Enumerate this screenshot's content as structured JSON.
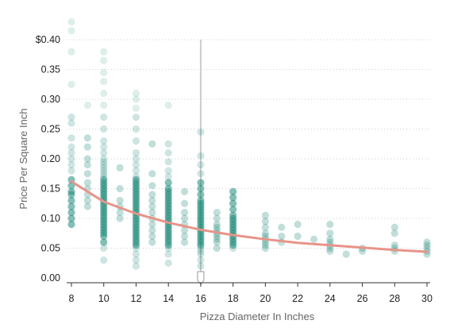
{
  "chart_data": {
    "type": "scatter",
    "xlabel": "Pizza Diameter In Inches",
    "ylabel": "Price Per Square Inch",
    "xlim": [
      8,
      30
    ],
    "ylim": [
      0,
      0.4
    ],
    "x_ticks": [
      "8",
      "10",
      "12",
      "14",
      "16",
      "18",
      "20",
      "22",
      "24",
      "26",
      "28",
      "30"
    ],
    "y_ticks": [
      "0.00",
      "0.05",
      "0.10",
      "0.15",
      "0.20",
      "0.25",
      "0.30",
      "0.35",
      "$0.40"
    ],
    "grid": "horizontal dotted",
    "colors": {
      "points": "#1f8a7a",
      "trend": "#e8948a",
      "marker": "#cccccc"
    },
    "columns": [
      {
        "x": 8,
        "y": [
          0.43,
          0.415,
          0.38,
          0.325,
          0.27,
          0.26,
          0.235,
          0.22,
          0.21,
          0.2,
          0.19,
          0.18,
          0.165,
          0.155,
          0.145,
          0.14,
          0.13,
          0.12,
          0.11,
          0.1,
          0.09
        ]
      },
      {
        "x": 9,
        "y": [
          0.29,
          0.235,
          0.22,
          0.2,
          0.19,
          0.175,
          0.16,
          0.15,
          0.14,
          0.13,
          0.12
        ]
      },
      {
        "x": 10,
        "y": [
          0.38,
          0.365,
          0.345,
          0.33,
          0.31,
          0.29,
          0.27,
          0.25,
          0.23,
          0.22,
          0.21,
          0.2,
          0.195,
          0.19,
          0.185,
          0.18,
          0.175,
          0.17,
          0.165,
          0.16,
          0.155,
          0.15,
          0.145,
          0.14,
          0.135,
          0.13,
          0.125,
          0.12,
          0.115,
          0.11,
          0.105,
          0.1,
          0.095,
          0.09,
          0.085,
          0.08,
          0.075,
          0.07,
          0.06,
          0.05,
          0.03
        ]
      },
      {
        "x": 11,
        "y": [
          0.185,
          0.15,
          0.13,
          0.12,
          0.11,
          0.1
        ]
      },
      {
        "x": 12,
        "y": [
          0.31,
          0.3,
          0.285,
          0.27,
          0.25,
          0.23,
          0.21,
          0.2,
          0.19,
          0.18,
          0.17,
          0.165,
          0.16,
          0.155,
          0.15,
          0.145,
          0.14,
          0.135,
          0.13,
          0.125,
          0.12,
          0.115,
          0.11,
          0.105,
          0.1,
          0.095,
          0.09,
          0.085,
          0.08,
          0.075,
          0.07,
          0.065,
          0.06,
          0.055,
          0.05,
          0.04,
          0.03,
          0.02
        ]
      },
      {
        "x": 13,
        "y": [
          0.225,
          0.175,
          0.155,
          0.14,
          0.13,
          0.12,
          0.11,
          0.1,
          0.09,
          0.08,
          0.07,
          0.06
        ]
      },
      {
        "x": 14,
        "y": [
          0.29,
          0.225,
          0.21,
          0.195,
          0.18,
          0.17,
          0.16,
          0.15,
          0.145,
          0.14,
          0.135,
          0.13,
          0.125,
          0.12,
          0.115,
          0.11,
          0.105,
          0.1,
          0.095,
          0.09,
          0.085,
          0.08,
          0.075,
          0.07,
          0.065,
          0.06,
          0.055,
          0.05,
          0.04,
          0.025
        ]
      },
      {
        "x": 15,
        "y": [
          0.145,
          0.125,
          0.11,
          0.1,
          0.09,
          0.08,
          0.07,
          0.06
        ]
      },
      {
        "x": 16,
        "y": [
          0.245,
          0.205,
          0.19,
          0.175,
          0.16,
          0.15,
          0.14,
          0.13,
          0.125,
          0.12,
          0.115,
          0.11,
          0.105,
          0.1,
          0.095,
          0.09,
          0.085,
          0.08,
          0.075,
          0.07,
          0.065,
          0.06,
          0.055,
          0.05,
          0.045,
          0.04,
          0.03,
          0.02
        ]
      },
      {
        "x": 17,
        "y": [
          0.11,
          0.1,
          0.09,
          0.085,
          0.08,
          0.075,
          0.07,
          0.065,
          0.06,
          0.05
        ]
      },
      {
        "x": 18,
        "y": [
          0.145,
          0.135,
          0.125,
          0.115,
          0.105,
          0.1,
          0.095,
          0.09,
          0.085,
          0.08,
          0.075,
          0.07,
          0.065,
          0.06,
          0.055,
          0.05
        ]
      },
      {
        "x": 20,
        "y": [
          0.105,
          0.095,
          0.085,
          0.075,
          0.07,
          0.065,
          0.06,
          0.055,
          0.05
        ]
      },
      {
        "x": 21,
        "y": [
          0.085,
          0.07,
          0.06
        ]
      },
      {
        "x": 22,
        "y": [
          0.09,
          0.07
        ]
      },
      {
        "x": 23,
        "y": [
          0.065
        ]
      },
      {
        "x": 24,
        "y": [
          0.09,
          0.075,
          0.065,
          0.06,
          0.055,
          0.05,
          0.045
        ]
      },
      {
        "x": 25,
        "y": [
          0.04
        ]
      },
      {
        "x": 26,
        "y": [
          0.05,
          0.045
        ]
      },
      {
        "x": 28,
        "y": [
          0.085,
          0.075,
          0.055,
          0.05,
          0.045
        ]
      },
      {
        "x": 30,
        "y": [
          0.06,
          0.055,
          0.05,
          0.045,
          0.04
        ]
      }
    ],
    "trend": {
      "x": [
        8,
        10,
        12,
        14,
        16,
        18,
        20,
        22,
        24,
        26,
        28,
        30
      ],
      "y": [
        0.162,
        0.128,
        0.108,
        0.093,
        0.081,
        0.072,
        0.065,
        0.059,
        0.055,
        0.051,
        0.047,
        0.044
      ]
    },
    "marker_x": 16,
    "marker_top": 0.4
  }
}
